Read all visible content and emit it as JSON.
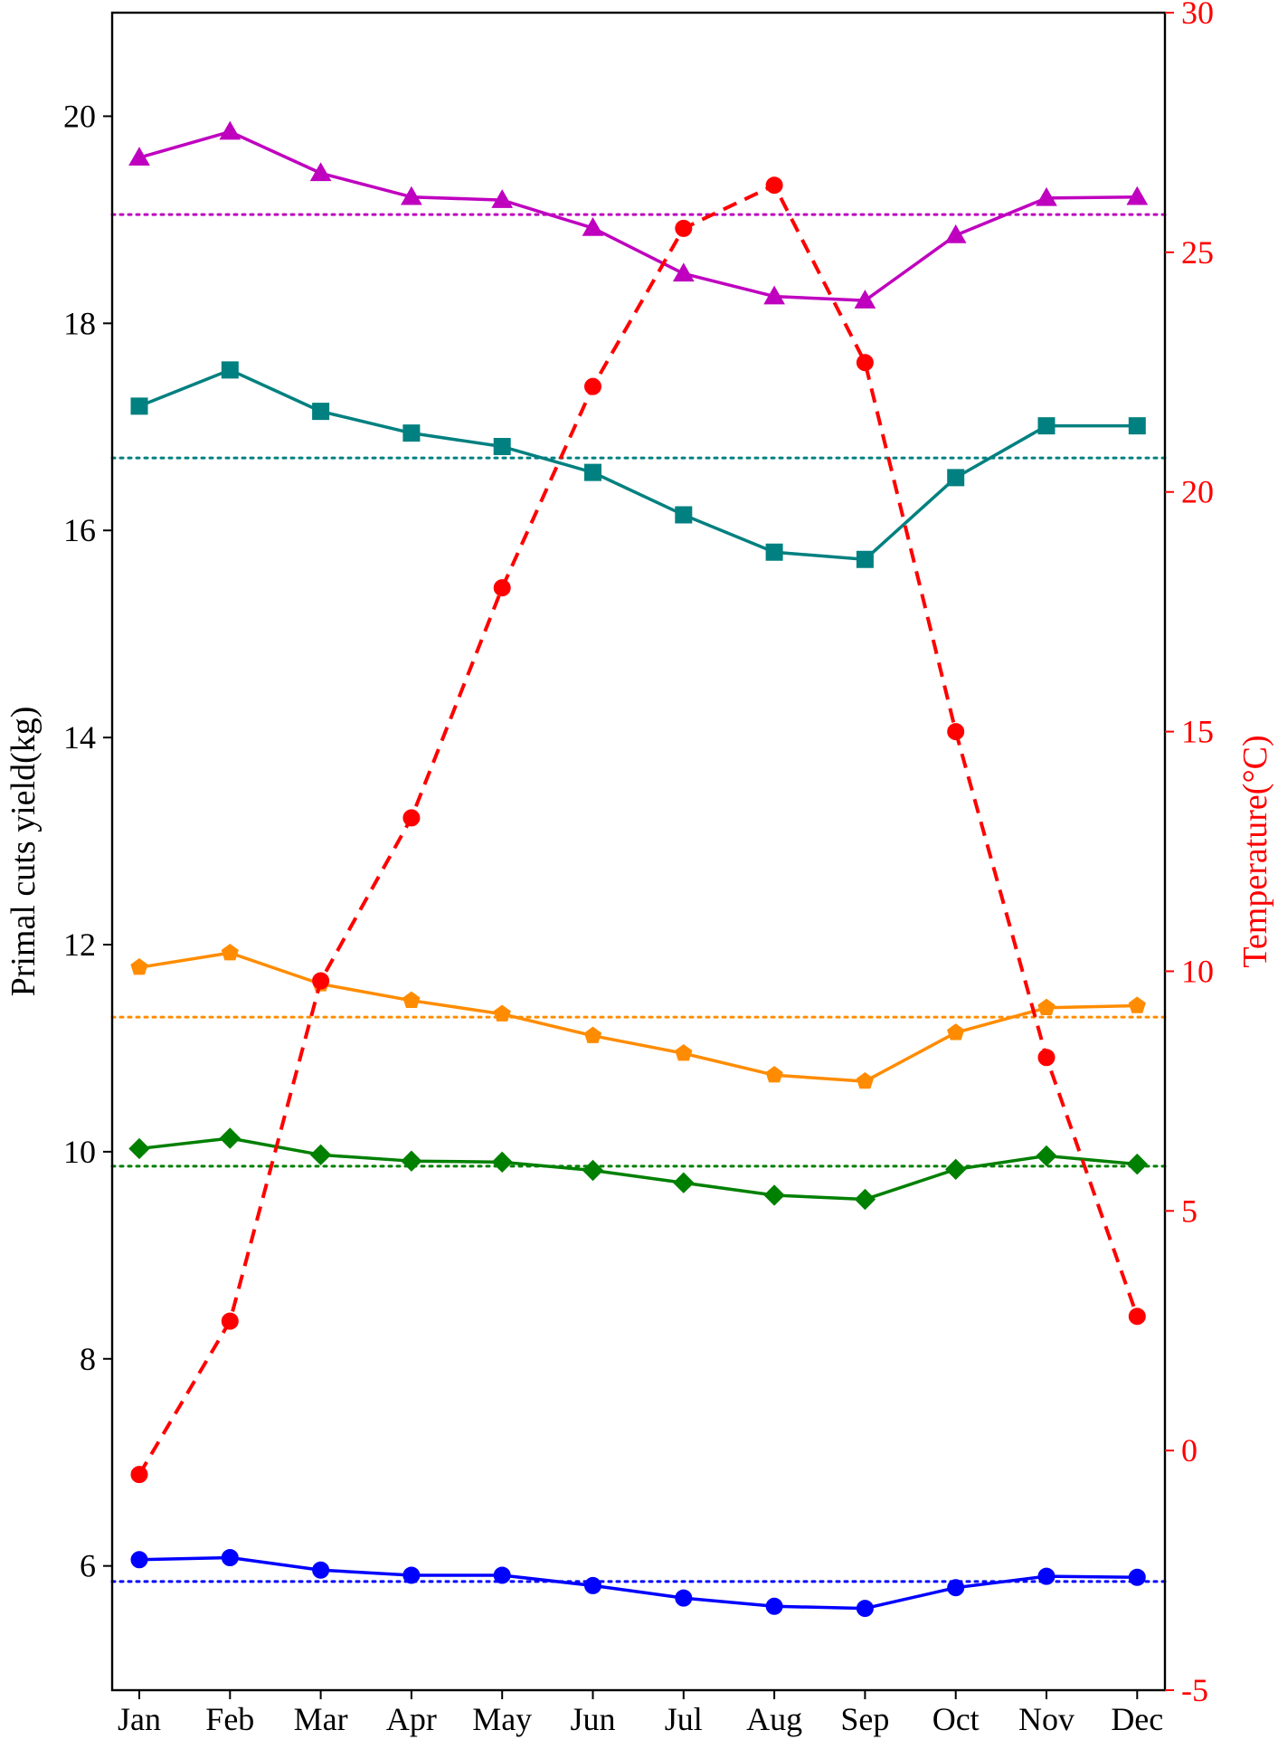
{
  "chart_data": {
    "type": "line",
    "title": "",
    "xlabel": "",
    "ylabel": "Primal cuts yield(kg)",
    "ylabel_right": "Temperature(°C)",
    "categories": [
      "Jan",
      "Feb",
      "Mar",
      "Apr",
      "May",
      "Jun",
      "Jul",
      "Aug",
      "Sep",
      "Oct",
      "Nov",
      "Dec"
    ],
    "ylim": [
      4.8,
      21.0
    ],
    "ylim_right": [
      -5,
      30
    ],
    "yticks": [
      6,
      8,
      10,
      12,
      14,
      16,
      18,
      20
    ],
    "yticks_right": [
      -5,
      0,
      5,
      10,
      15,
      20,
      25,
      30
    ],
    "grid": false,
    "legend": "none",
    "series": [
      {
        "axis": "left",
        "color": "#bf00bf",
        "marker": "triangle",
        "linestyle": "solid",
        "values": [
          19.6,
          19.85,
          19.45,
          19.22,
          19.19,
          18.92,
          18.48,
          18.26,
          18.22,
          18.85,
          19.21,
          19.22
        ],
        "mean": 19.05
      },
      {
        "axis": "left",
        "color": "#008080",
        "marker": "square",
        "linestyle": "solid",
        "values": [
          17.2,
          17.55,
          17.15,
          16.94,
          16.81,
          16.56,
          16.15,
          15.79,
          15.72,
          16.51,
          17.01,
          17.01
        ],
        "mean": 16.7
      },
      {
        "axis": "left",
        "color": "#ff8c00",
        "marker": "pentagon",
        "linestyle": "solid",
        "values": [
          11.78,
          11.92,
          11.62,
          11.46,
          11.33,
          11.12,
          10.95,
          10.74,
          10.68,
          11.15,
          11.39,
          11.41
        ],
        "mean": 11.3
      },
      {
        "axis": "left",
        "color": "#008000",
        "marker": "diamond",
        "linestyle": "solid",
        "values": [
          10.03,
          10.13,
          9.97,
          9.91,
          9.9,
          9.82,
          9.7,
          9.58,
          9.54,
          9.83,
          9.96,
          9.88
        ],
        "mean": 9.86
      },
      {
        "axis": "left",
        "color": "#0000ff",
        "marker": "circle",
        "linestyle": "solid",
        "values": [
          6.06,
          6.08,
          5.96,
          5.91,
          5.91,
          5.81,
          5.69,
          5.61,
          5.59,
          5.79,
          5.9,
          5.89
        ],
        "mean": 5.85
      },
      {
        "axis": "right",
        "color": "#ff0000",
        "marker": "circle",
        "linestyle": "dashed",
        "values": [
          -0.5,
          2.7,
          9.8,
          13.2,
          18.0,
          22.2,
          25.5,
          26.4,
          22.7,
          15.0,
          8.2,
          2.8
        ]
      }
    ]
  }
}
